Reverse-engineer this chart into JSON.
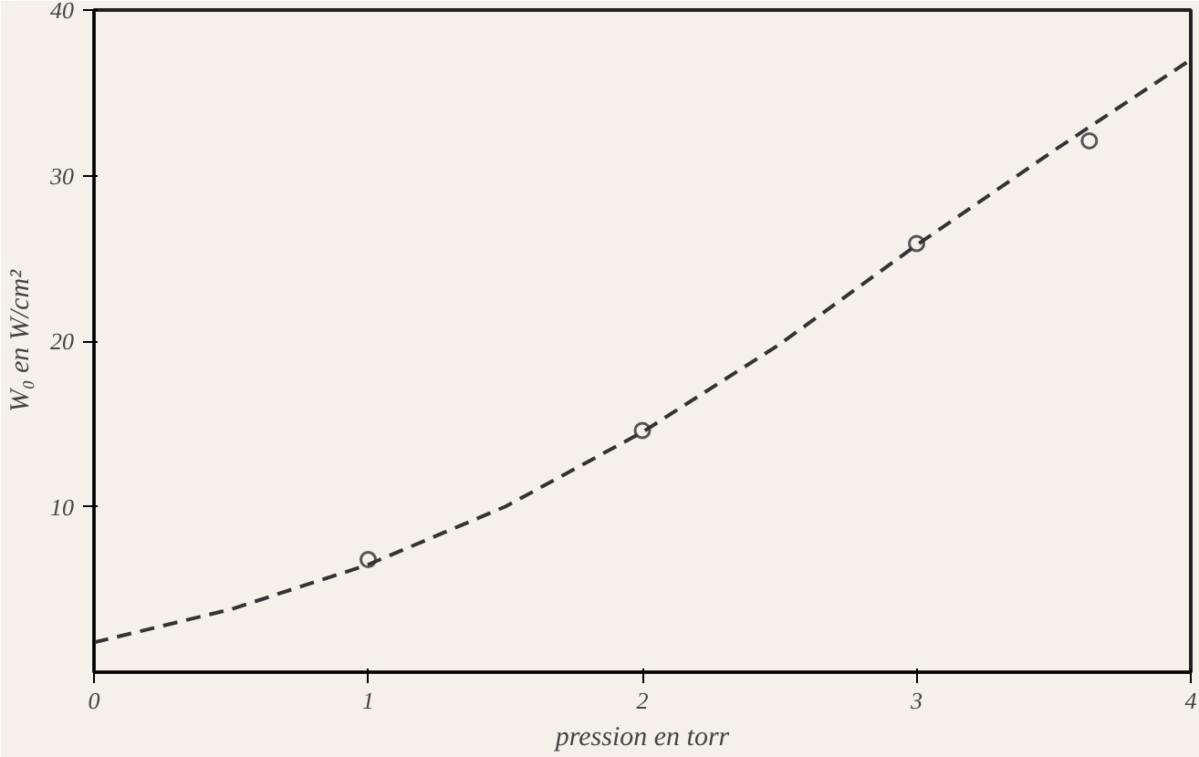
{
  "chart_data": {
    "type": "scatter",
    "xlabel": "pression en torr",
    "ylabel": "W₀ en W/cm²",
    "xlim": [
      0,
      4
    ],
    "ylim": [
      0,
      40
    ],
    "xticks": [
      0,
      1,
      2,
      3,
      4
    ],
    "yticks": [
      10,
      20,
      30,
      40
    ],
    "grid": false,
    "series": [
      {
        "color": "#555555",
        "marker": "circle",
        "x": [
          1,
          2,
          3,
          3.63
        ],
        "values": [
          6.8,
          14.6,
          25.9,
          32.1
        ]
      },
      {
        "type": "line",
        "color": "#333333",
        "line_style": "dashed",
        "marker": "none",
        "x": [
          0,
          0.5,
          1,
          1.5,
          2,
          2.5,
          3,
          3.5,
          4
        ],
        "values": [
          1.8,
          3.8,
          6.5,
          10,
          14.5,
          19.8,
          25.8,
          31.5,
          37
        ]
      }
    ]
  }
}
